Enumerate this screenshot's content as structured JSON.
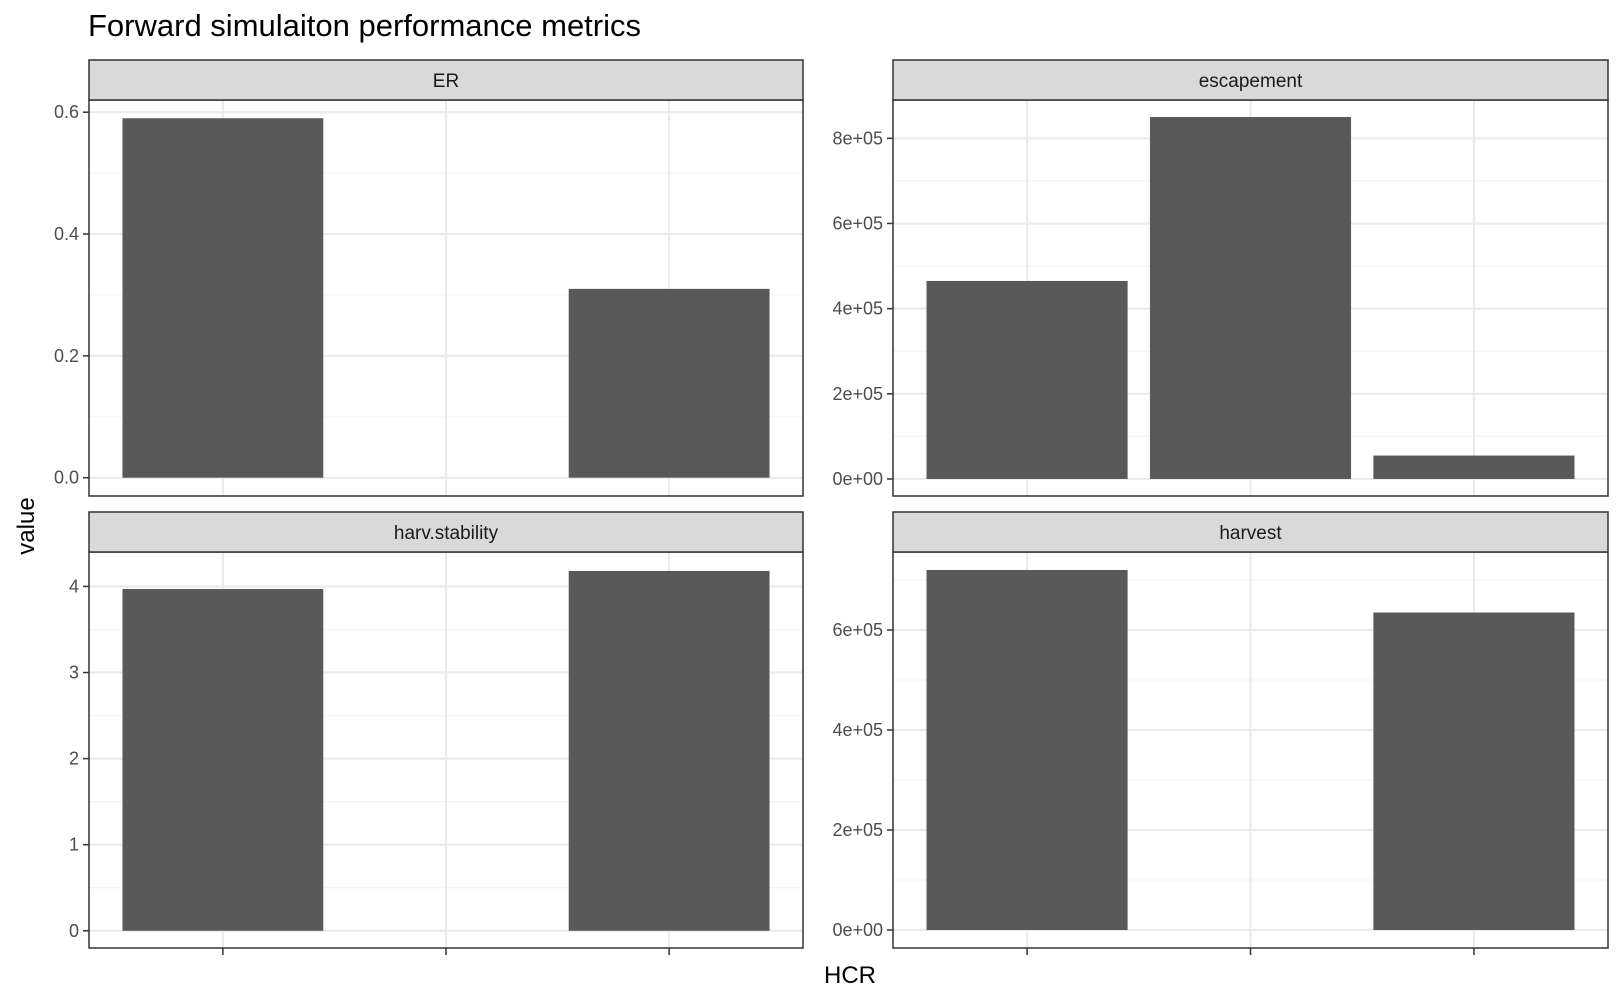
{
  "chart_data": {
    "type": "bar",
    "title": "Forward simulaiton performance metrics",
    "xlabel": "HCR",
    "ylabel": "value",
    "x_tick_labels": [
      "",
      "",
      ""
    ],
    "grid": true,
    "facets": [
      {
        "name": "ER",
        "categories": [
          "1",
          "2",
          "3"
        ],
        "values": [
          0.59,
          null,
          0.31
        ],
        "ylim": [
          -0.03,
          0.62
        ],
        "yticks": [
          0.0,
          0.2,
          0.4,
          0.6
        ],
        "ytick_labels": [
          "0.0",
          "0.2",
          "0.4",
          "0.6"
        ]
      },
      {
        "name": "escapement",
        "categories": [
          "1",
          "2",
          "3"
        ],
        "values": [
          465000,
          850000,
          55000
        ],
        "ylim": [
          -40000,
          890000
        ],
        "yticks": [
          0,
          200000,
          400000,
          600000,
          800000
        ],
        "ytick_labels": [
          "0e+00",
          "2e+05",
          "4e+05",
          "6e+05",
          "8e+05"
        ]
      },
      {
        "name": "harv.stability",
        "categories": [
          "1",
          "2",
          "3"
        ],
        "values": [
          3.97,
          null,
          4.18
        ],
        "ylim": [
          -0.2,
          4.4
        ],
        "yticks": [
          0,
          1,
          2,
          3,
          4
        ],
        "ytick_labels": [
          "0",
          "1",
          "2",
          "3",
          "4"
        ]
      },
      {
        "name": "harvest",
        "categories": [
          "1",
          "2",
          "3"
        ],
        "values": [
          720000,
          null,
          635000
        ],
        "ylim": [
          -36000,
          756000
        ],
        "yticks": [
          0,
          200000,
          400000,
          600000
        ],
        "ytick_labels": [
          "0e+00",
          "2e+05",
          "4e+05",
          "6e+05"
        ]
      }
    ]
  },
  "colors": {
    "bar": "#595959",
    "strip_fill": "#d9d9d9",
    "panel_border": "#333333",
    "grid_major": "#ebebeb",
    "grid_minor": "#f5f5f5",
    "tick_text": "#4d4d4d"
  }
}
